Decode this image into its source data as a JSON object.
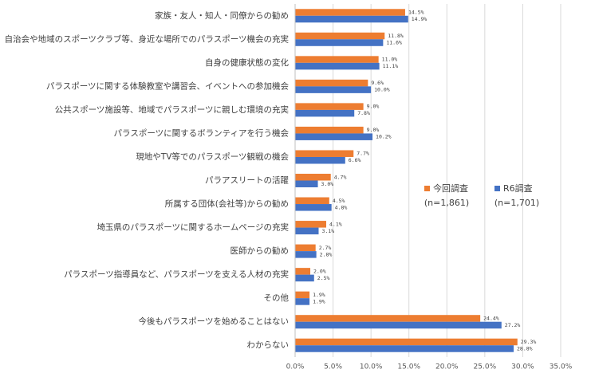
{
  "chart_data": {
    "type": "bar",
    "orientation": "horizontal",
    "categories": [
      "家族・友人・知人・同僚からの勧め",
      "自治会や地域のスポーツクラブ等、身近な場所でのパラスポーツ機会の充実",
      "自身の健康状態の変化",
      "パラスポーツに関する体験教室や講習会、イベントへの参加機会",
      "公共スポーツ施設等、地域でパラスポーツに親しむ環境の充実",
      "パラスポーツに関するボランティアを行う機会",
      "現地やTV等でのパラスポーツ観戦の機会",
      "パラアスリートの活躍",
      "所属する団体(会社等)からの勧め",
      "埼玉県のパラスポーツに関するホームページの充実",
      "医師からの勧め",
      "パラスポーツ指導員など、パラスポーツを支える人材の充実",
      "その他",
      "今後もパラスポーツを始めることはない",
      "わからない"
    ],
    "series": [
      {
        "name": "今回調査",
        "sample": "(n=1,861)",
        "color": "#ED7D31",
        "values": [
          14.5,
          11.8,
          11.0,
          9.6,
          9.0,
          9.0,
          7.7,
          4.7,
          4.5,
          4.1,
          2.7,
          2.0,
          1.9,
          24.4,
          29.3
        ],
        "value_labels": [
          "14.5%",
          "11.8%",
          "11.0%",
          "9.6%",
          "9.0%",
          "9.0%",
          "7.7%",
          "4.7%",
          "4.5%",
          "4.1%",
          "2.7%",
          "2.0%",
          "1.9%",
          "24.4%",
          "29.3%"
        ]
      },
      {
        "name": "R6調査",
        "sample": "(n=1,701)",
        "color": "#4472C4",
        "values": [
          14.9,
          11.6,
          11.1,
          10.0,
          7.8,
          10.2,
          6.6,
          3.0,
          4.8,
          3.1,
          2.8,
          2.5,
          1.9,
          27.2,
          28.8
        ],
        "value_labels": [
          "14.9%",
          "11.6%",
          "11.1%",
          "10.0%",
          "7.8%",
          "10.2%",
          "6.6%",
          "3.0%",
          "4.8%",
          "3.1%",
          "2.8%",
          "2.5%",
          "1.9%",
          "27.2%",
          "28.8%"
        ]
      }
    ],
    "xlim": [
      0,
      35
    ],
    "xticks": [
      {
        "value": 0,
        "label": "0.0%"
      },
      {
        "value": 5,
        "label": "5.0%"
      },
      {
        "value": 10,
        "label": "10.0%"
      },
      {
        "value": 15,
        "label": "15.0%"
      },
      {
        "value": 20,
        "label": "20.0%"
      },
      {
        "value": 25,
        "label": "25.0%"
      },
      {
        "value": 30,
        "label": "30.0%"
      },
      {
        "value": 35,
        "label": "35.0%"
      }
    ],
    "grid": true
  }
}
